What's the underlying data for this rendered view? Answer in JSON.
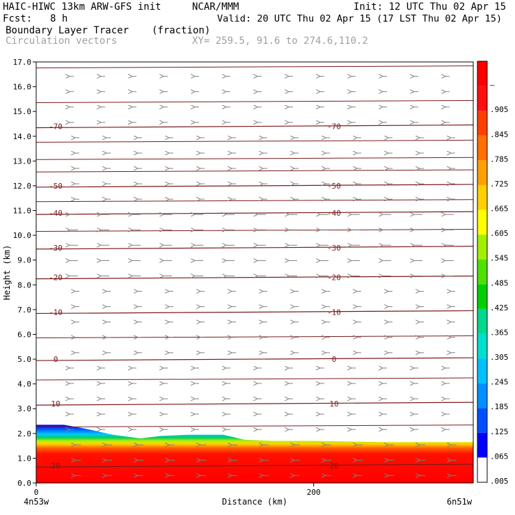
{
  "header": {
    "model": "HAIC-HIWC 13km ARW-GFS init",
    "org": "NCAR/MMM",
    "init": "Init: 12 UTC Thu 02 Apr 15",
    "fcst_label": "Fcst:",
    "fcst_value": "8 h",
    "valid": "Valid: 20 UTC Thu 02 Apr 15 (17 LST Thu 02 Apr 15)",
    "field": "Boundary Layer Tracer",
    "field_units": "(fraction)",
    "overlay": "Circulation vectors",
    "xy": "XY= 259.5, 91.6 to 274.6,110.2"
  },
  "chart_data": {
    "type": "heatmap",
    "title": "Boundary Layer Tracer",
    "units": "(fraction)",
    "xlabel": "Distance (km)",
    "ylabel": "Height (km)",
    "xlim": [
      0,
      315
    ],
    "ylim": [
      0.0,
      17.0
    ],
    "x_ticks": [
      0,
      200
    ],
    "y_ticks": [
      "0.0",
      "1.0",
      "2.0",
      "3.0",
      "4.0",
      "5.0",
      "6.0",
      "7.0",
      "8.0",
      "9.0",
      "10.0",
      "11.0",
      "12.0",
      "13.0",
      "14.0",
      "15.0",
      "16.0",
      "17.0"
    ],
    "x_endpoints": {
      "left": "4n53w",
      "right": "6n51w"
    },
    "colorbar": {
      "labels": [
        ".005",
        ".065",
        ".125",
        ".185",
        ".245",
        ".305",
        ".365",
        ".425",
        ".485",
        ".545",
        ".605",
        ".665",
        ".725",
        ".785",
        ".845",
        ".905",
        "–"
      ],
      "colors": [
        "#ffffff",
        "#0000ff",
        "#0050ff",
        "#0090ff",
        "#00c0ff",
        "#00e0d0",
        "#00d890",
        "#00d000",
        "#50e000",
        "#a0f000",
        "#ffff00",
        "#ffd000",
        "#ffa000",
        "#ff7000",
        "#ff4000",
        "#ff1010",
        "#ff0000"
      ]
    },
    "boundary_layer_top_km": [
      {
        "x": 0,
        "y": 2.35
      },
      {
        "x": 20,
        "y": 2.35
      },
      {
        "x": 35,
        "y": 2.2
      },
      {
        "x": 55,
        "y": 1.95
      },
      {
        "x": 75,
        "y": 1.8
      },
      {
        "x": 90,
        "y": 1.9
      },
      {
        "x": 110,
        "y": 1.95
      },
      {
        "x": 135,
        "y": 1.95
      },
      {
        "x": 150,
        "y": 1.75
      },
      {
        "x": 170,
        "y": 1.7
      },
      {
        "x": 200,
        "y": 1.7
      },
      {
        "x": 250,
        "y": 1.65
      },
      {
        "x": 315,
        "y": 1.65
      }
    ],
    "temperature_contours_C": [
      {
        "label": "-70",
        "y": 14.4
      },
      {
        "label": "-50",
        "y": 12.0
      },
      {
        "label": "-40",
        "y": 10.9
      },
      {
        "label": "-30",
        "y": 9.5
      },
      {
        "label": "-20",
        "y": 8.3
      },
      {
        "label": "-10",
        "y": 6.9
      },
      {
        "label": "0",
        "y": 5.0
      },
      {
        "label": "10",
        "y": 3.2
      },
      {
        "label": "20",
        "y": 0.7
      }
    ],
    "vector_direction": "westward"
  }
}
